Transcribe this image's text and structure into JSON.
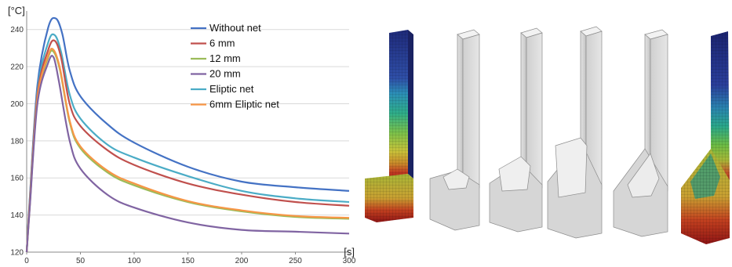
{
  "chart_data": {
    "type": "line",
    "ylabel": "[°C]",
    "xlabel": "[s]",
    "xlim": [
      0,
      300
    ],
    "ylim": [
      120,
      250
    ],
    "xticks": [
      0,
      50,
      100,
      150,
      200,
      250,
      300
    ],
    "yticks": [
      120,
      140,
      160,
      180,
      200,
      220,
      240
    ],
    "grid": "horizontal",
    "legend_position": "top-right",
    "series": [
      {
        "name": "Without net",
        "color": "#4472c4",
        "x": [
          0,
          3,
          10,
          20,
          27,
          33,
          40,
          50,
          75,
          100,
          150,
          200,
          250,
          300
        ],
        "y": [
          120,
          150,
          210,
          241,
          246,
          238,
          218,
          204,
          189,
          179,
          166,
          158,
          155,
          153
        ]
      },
      {
        "name": "6 mm",
        "color": "#c0504d",
        "x": [
          0,
          3,
          10,
          20,
          26,
          32,
          40,
          50,
          75,
          100,
          150,
          200,
          250,
          300
        ],
        "y": [
          120,
          148,
          205,
          229,
          234,
          225,
          200,
          188,
          175,
          167,
          157,
          151,
          147,
          145
        ]
      },
      {
        "name": "12 mm",
        "color": "#9bbb59",
        "x": [
          0,
          3,
          10,
          20,
          25,
          31,
          40,
          50,
          75,
          100,
          150,
          200,
          250,
          300
        ],
        "y": [
          120,
          146,
          202,
          225,
          228,
          218,
          190,
          176,
          163,
          156,
          147,
          142,
          139,
          138
        ]
      },
      {
        "name": "20 mm",
        "color": "#8064a2",
        "x": [
          0,
          3,
          10,
          20,
          25,
          30,
          40,
          50,
          75,
          100,
          150,
          200,
          250,
          300
        ],
        "y": [
          120,
          145,
          200,
          222,
          225,
          212,
          180,
          165,
          151,
          144,
          136,
          132,
          131,
          130
        ]
      },
      {
        "name": "Eliptic net",
        "color": "#4bacc6",
        "x": [
          0,
          3,
          10,
          20,
          26,
          32,
          40,
          50,
          75,
          100,
          150,
          200,
          250,
          300
        ],
        "y": [
          120,
          149,
          207,
          233,
          237,
          228,
          205,
          192,
          178,
          171,
          161,
          153,
          149,
          147
        ]
      },
      {
        "name": "6mm Eliptic net",
        "color": "#f79646",
        "x": [
          0,
          3,
          10,
          20,
          25,
          31,
          40,
          50,
          75,
          100,
          150,
          200,
          250,
          300
        ],
        "y": [
          120,
          146,
          203,
          226,
          229,
          219,
          191,
          177,
          164,
          157,
          147.5,
          142.5,
          139.5,
          138.5
        ]
      }
    ]
  },
  "renders": {
    "description_colors": {
      "gray_fill": "#d9d9d9",
      "gray_edge": "#8c8c8c"
    }
  }
}
